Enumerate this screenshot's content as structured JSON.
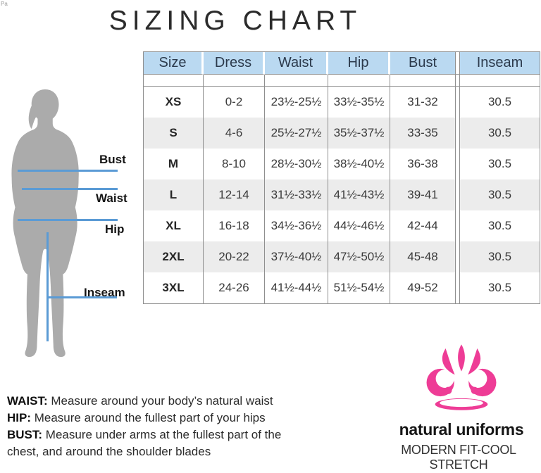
{
  "artifact_mark": "Pa",
  "title": "SIZING CHART",
  "table": {
    "columns": [
      "Size",
      "Dress",
      "Waist",
      "Hip",
      "Bust",
      "Inseam"
    ],
    "rows": [
      [
        "XS",
        "0-2",
        "23½-25½",
        "33½-35½",
        "31-32",
        "30.5"
      ],
      [
        "S",
        "4-6",
        "25½-27½",
        "35½-37½",
        "33-35",
        "30.5"
      ],
      [
        "M",
        "8-10",
        "28½-30½",
        "38½-40½",
        "36-38",
        "30.5"
      ],
      [
        "L",
        "12-14",
        "31½-33½",
        "41½-43½",
        "39-41",
        "30.5"
      ],
      [
        "XL",
        "16-18",
        "34½-36½",
        "44½-46½",
        "42-44",
        "30.5"
      ],
      [
        "2XL",
        "20-22",
        "37½-40½",
        "47½-50½",
        "45-48",
        "30.5"
      ],
      [
        "3XL",
        "24-26",
        "41½-44½",
        "51½-54½",
        "49-52",
        "30.5"
      ]
    ]
  },
  "figure_labels": {
    "bust": "Bust",
    "waist": "Waist",
    "hip": "Hip",
    "inseam": "Inseam"
  },
  "notes": [
    {
      "label": "WAIST:",
      "text": "Measure around your body’s natural waist"
    },
    {
      "label": "HIP:",
      "text": "Measure around the fullest part of your hips"
    },
    {
      "label": "BUST:",
      "text": "Measure under arms at the fullest part of the chest, and around the shoulder blades"
    }
  ],
  "brand": {
    "name": "natural uniforms",
    "tagline": "MODERN FIT-COOL STRETCH",
    "flower_icon": "lotus-fleur-icon",
    "flower_color": "#ee3c96"
  },
  "colors": {
    "header_bg": "#bad9f1",
    "row_alt_bg": "#ececec",
    "table_border": "#8f8f8f",
    "measure_line_blue": "#5b9bd5",
    "silhouette_gray": "#ababab"
  }
}
